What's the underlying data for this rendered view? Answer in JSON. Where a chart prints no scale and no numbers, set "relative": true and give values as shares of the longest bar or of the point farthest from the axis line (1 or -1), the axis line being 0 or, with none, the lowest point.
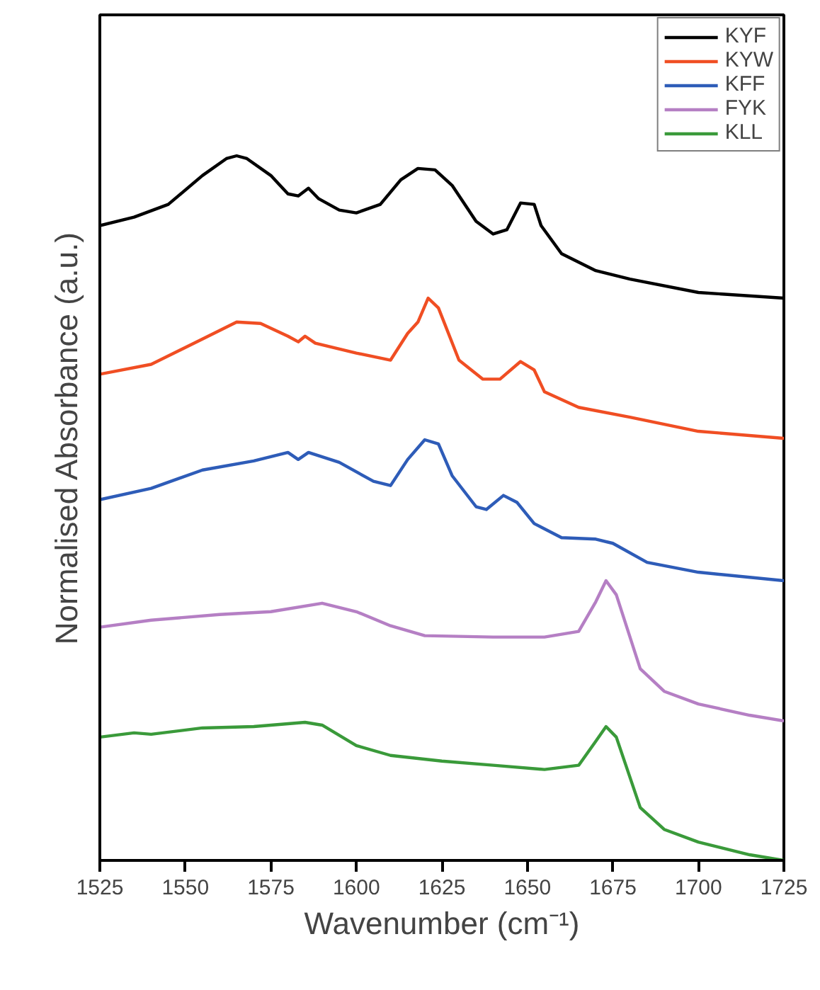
{
  "chart_data": {
    "type": "line",
    "relative": true,
    "xlabel": "Wavenumber (cm⁻¹)",
    "ylabel": "Normalised Absorbance (a.u.)",
    "xlim": [
      1525,
      1725
    ],
    "xticks": [
      1525,
      1550,
      1575,
      1600,
      1625,
      1650,
      1675,
      1700,
      1725
    ],
    "legend": "top right",
    "grid": false,
    "line_style": "solid",
    "series": [
      {
        "name": "KYF",
        "color": "#000000",
        "x": [
          1525,
          1535,
          1545,
          1555,
          1562,
          1565,
          1568,
          1575,
          1580,
          1583,
          1586,
          1589,
          1595,
          1600,
          1607,
          1613,
          1618,
          1623,
          1628,
          1635,
          1640,
          1644,
          1648,
          1652,
          1654,
          1660,
          1670,
          1680,
          1700,
          1725
        ],
        "values": [
          0.901,
          0.913,
          0.931,
          0.972,
          0.996,
          1.0,
          0.996,
          0.972,
          0.946,
          0.943,
          0.954,
          0.939,
          0.923,
          0.919,
          0.931,
          0.966,
          0.982,
          0.98,
          0.958,
          0.907,
          0.889,
          0.895,
          0.933,
          0.931,
          0.901,
          0.861,
          0.837,
          0.825,
          0.806,
          0.798
        ]
      },
      {
        "name": "KYW",
        "color": "#f04e23",
        "x": [
          1525,
          1540,
          1555,
          1565,
          1572,
          1580,
          1583,
          1585,
          1588,
          1600,
          1610,
          1615,
          1618,
          1621,
          1624,
          1630,
          1637,
          1642,
          1648,
          1652,
          1655,
          1665,
          1680,
          1700,
          1725
        ],
        "values": [
          0.69,
          0.704,
          0.74,
          0.764,
          0.762,
          0.744,
          0.736,
          0.744,
          0.734,
          0.72,
          0.71,
          0.748,
          0.764,
          0.798,
          0.784,
          0.71,
          0.683,
          0.683,
          0.708,
          0.696,
          0.665,
          0.643,
          0.629,
          0.609,
          0.599
        ]
      },
      {
        "name": "KFF",
        "color": "#2e5cb8",
        "x": [
          1525,
          1540,
          1555,
          1570,
          1580,
          1583,
          1586,
          1595,
          1605,
          1610,
          1615,
          1620,
          1624,
          1628,
          1635,
          1638,
          1643,
          1647,
          1652,
          1660,
          1670,
          1675,
          1685,
          1700,
          1725
        ],
        "values": [
          0.512,
          0.528,
          0.554,
          0.567,
          0.579,
          0.569,
          0.579,
          0.565,
          0.538,
          0.532,
          0.569,
          0.597,
          0.591,
          0.546,
          0.502,
          0.498,
          0.518,
          0.508,
          0.478,
          0.458,
          0.456,
          0.45,
          0.423,
          0.409,
          0.397
        ]
      },
      {
        "name": "FYK",
        "color": "#b57fc4",
        "x": [
          1525,
          1540,
          1560,
          1575,
          1590,
          1600,
          1610,
          1620,
          1640,
          1655,
          1665,
          1670,
          1673,
          1676,
          1683,
          1690,
          1700,
          1715,
          1725
        ],
        "values": [
          0.331,
          0.341,
          0.349,
          0.353,
          0.365,
          0.353,
          0.333,
          0.319,
          0.317,
          0.317,
          0.325,
          0.367,
          0.397,
          0.377,
          0.272,
          0.24,
          0.222,
          0.206,
          0.198
        ]
      },
      {
        "name": "KLL",
        "color": "#3a9a3a",
        "x": [
          1525,
          1535,
          1540,
          1555,
          1570,
          1585,
          1590,
          1600,
          1610,
          1625,
          1640,
          1655,
          1665,
          1670,
          1673,
          1676,
          1683,
          1690,
          1700,
          1715,
          1725
        ],
        "values": [
          0.175,
          0.181,
          0.179,
          0.188,
          0.19,
          0.196,
          0.192,
          0.163,
          0.149,
          0.141,
          0.135,
          0.129,
          0.135,
          0.169,
          0.19,
          0.175,
          0.075,
          0.044,
          0.026,
          0.008,
          0.0
        ]
      }
    ]
  }
}
